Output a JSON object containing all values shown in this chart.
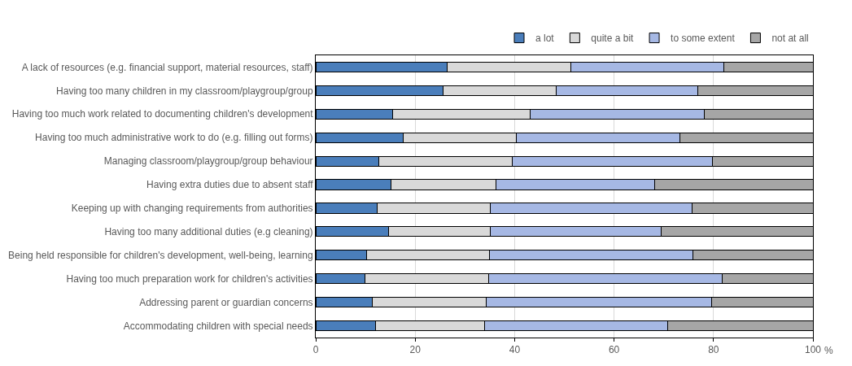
{
  "chart_data": {
    "type": "bar",
    "orientation": "horizontal",
    "stacked": true,
    "categories": [
      "A lack of resources (e.g. financial support, material resources, staff)",
      "Having too many children in my classroom/playgroup/group",
      "Having too much work related to documenting children's development",
      "Having too much administrative work to do (e.g. filling out forms)",
      "Managing classroom/playgroup/group behaviour",
      "Having extra duties due to absent staff",
      "Keeping up with changing requirements from authorities",
      "Having too many additional duties (e.g cleaning)",
      "Being held responsible for children's development, well-being, learning",
      "Having too much preparation work for children's activities",
      "Addressing parent or guardian concerns",
      "Accommodating children with special needs"
    ],
    "series": [
      {
        "name": "a lot",
        "color": "#4a7ebb",
        "values": [
          26.4,
          25.6,
          15.5,
          17.6,
          12.7,
          15.2,
          12.3,
          14.7,
          10.2,
          9.9,
          11.4,
          12.1
        ]
      },
      {
        "name": "quite a bit",
        "color": "#d9d9d9",
        "values": [
          24.9,
          22.8,
          27.6,
          22.8,
          26.8,
          21.1,
          22.8,
          20.4,
          24.7,
          24.9,
          22.9,
          21.8
        ]
      },
      {
        "name": "to some extent",
        "color": "#a6b8e4",
        "values": [
          30.7,
          28.5,
          35.0,
          32.9,
          40.3,
          31.9,
          40.6,
          34.4,
          40.9,
          47.0,
          45.3,
          36.9
        ]
      },
      {
        "name": "not at all",
        "color": "#a6a6a6",
        "values": [
          18.0,
          23.1,
          21.9,
          26.7,
          20.2,
          31.8,
          24.3,
          30.5,
          24.2,
          18.2,
          20.4,
          29.2
        ]
      }
    ],
    "xlabel": "%",
    "xlim": [
      0,
      100
    ],
    "xticks": [
      0,
      20,
      40,
      60,
      80,
      100
    ],
    "grid": "x",
    "legend": "top right"
  }
}
